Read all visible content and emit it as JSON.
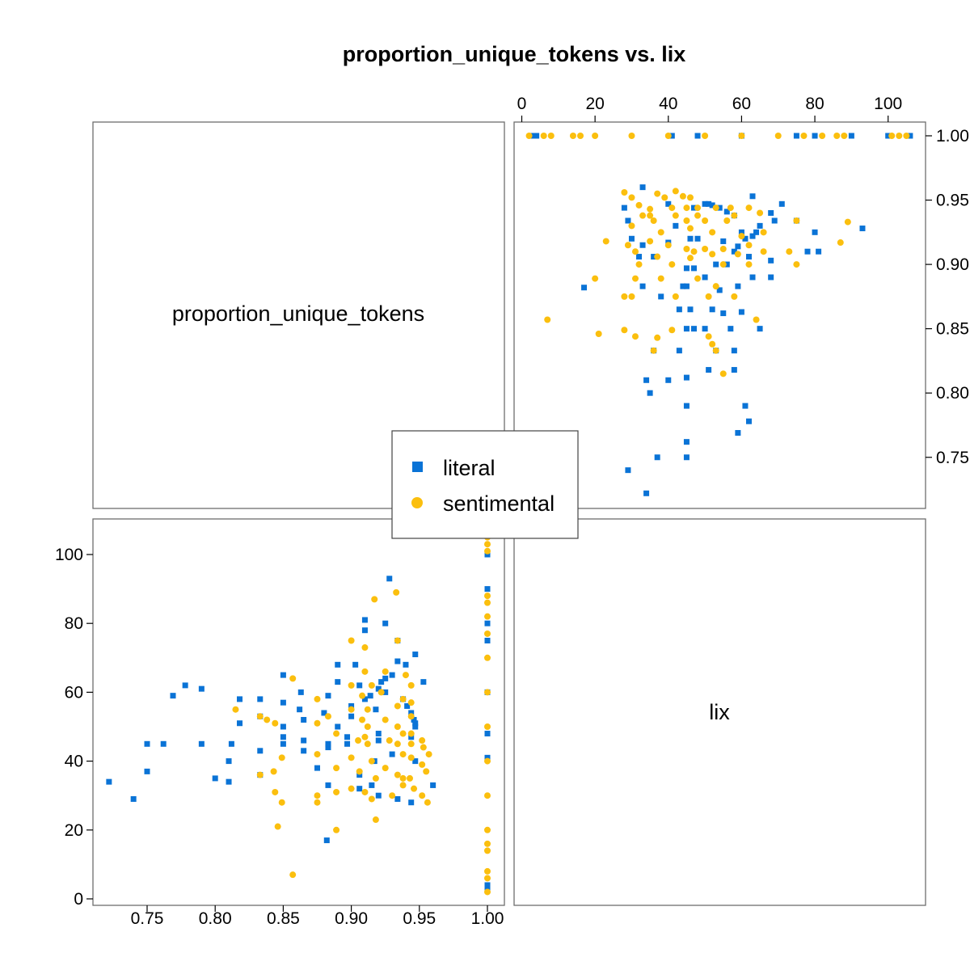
{
  "title": "proportion_unique_tokens vs. lix",
  "variables": [
    "proportion_unique_tokens",
    "lix"
  ],
  "colors": {
    "literal": "#0a73d6",
    "sentimental": "#fbbf0e"
  },
  "chart_data": {
    "type": "scatter",
    "title": "proportion_unique_tokens vs. lix",
    "variables": [
      "proportion_unique_tokens",
      "lix"
    ],
    "x_axis": {
      "variable": "lix",
      "range": [
        0,
        106
      ],
      "ticks": [
        0,
        20,
        40,
        60,
        80,
        100
      ],
      "tick_labels": [
        "0",
        "20",
        "40",
        "60",
        "80",
        "100"
      ]
    },
    "y_axis": {
      "variable": "proportion_unique_tokens",
      "range": [
        0.72,
        1.0
      ],
      "ticks": [
        0.75,
        0.8,
        0.85,
        0.9,
        0.95,
        1.0
      ],
      "tick_labels": [
        "0.75",
        "0.80",
        "0.85",
        "0.90",
        "0.95",
        "1.00"
      ]
    },
    "legend": {
      "placement": "center",
      "entries": [
        "literal",
        "sentimental"
      ]
    },
    "grid": false,
    "series": [
      {
        "name": "literal",
        "marker": "square",
        "color": "#0a73d6",
        "points": [
          [
            3,
            1.0
          ],
          [
            4,
            1.0
          ],
          [
            41,
            1.0
          ],
          [
            48,
            1.0
          ],
          [
            60,
            1.0
          ],
          [
            75,
            1.0
          ],
          [
            80,
            1.0
          ],
          [
            90,
            1.0
          ],
          [
            100,
            1.0
          ],
          [
            106,
            1.0
          ],
          [
            33,
            0.96
          ],
          [
            28,
            0.944
          ],
          [
            40,
            0.947
          ],
          [
            47,
            0.944
          ],
          [
            50,
            0.947
          ],
          [
            51,
            0.947
          ],
          [
            52,
            0.946
          ],
          [
            54,
            0.944
          ],
          [
            56,
            0.941
          ],
          [
            58,
            0.938
          ],
          [
            63,
            0.953
          ],
          [
            68,
            0.94
          ],
          [
            71,
            0.947
          ],
          [
            29,
            0.934
          ],
          [
            42,
            0.93
          ],
          [
            60,
            0.925
          ],
          [
            65,
            0.93
          ],
          [
            69,
            0.934
          ],
          [
            75,
            0.934
          ],
          [
            80,
            0.925
          ],
          [
            93,
            0.928
          ],
          [
            63,
            0.922
          ],
          [
            64,
            0.925
          ],
          [
            30,
            0.92
          ],
          [
            33,
            0.915
          ],
          [
            40,
            0.917
          ],
          [
            46,
            0.92
          ],
          [
            48,
            0.92
          ],
          [
            55,
            0.918
          ],
          [
            59,
            0.914
          ],
          [
            61,
            0.92
          ],
          [
            78,
            0.91
          ],
          [
            81,
            0.91
          ],
          [
            32,
            0.906
          ],
          [
            36,
            0.906
          ],
          [
            45,
            0.897
          ],
          [
            47,
            0.897
          ],
          [
            53,
            0.9
          ],
          [
            56,
            0.9
          ],
          [
            58,
            0.91
          ],
          [
            62,
            0.906
          ],
          [
            68,
            0.903
          ],
          [
            17,
            0.882
          ],
          [
            33,
            0.883
          ],
          [
            38,
            0.875
          ],
          [
            44,
            0.883
          ],
          [
            45,
            0.883
          ],
          [
            50,
            0.89
          ],
          [
            54,
            0.88
          ],
          [
            59,
            0.883
          ],
          [
            63,
            0.89
          ],
          [
            68,
            0.89
          ],
          [
            43,
            0.865
          ],
          [
            46,
            0.865
          ],
          [
            52,
            0.865
          ],
          [
            55,
            0.862
          ],
          [
            60,
            0.863
          ],
          [
            45,
            0.85
          ],
          [
            47,
            0.85
          ],
          [
            50,
            0.85
          ],
          [
            57,
            0.85
          ],
          [
            65,
            0.85
          ],
          [
            36,
            0.833
          ],
          [
            43,
            0.833
          ],
          [
            53,
            0.833
          ],
          [
            58,
            0.833
          ],
          [
            34,
            0.81
          ],
          [
            40,
            0.81
          ],
          [
            45,
            0.812
          ],
          [
            51,
            0.818
          ],
          [
            58,
            0.818
          ],
          [
            35,
            0.8
          ],
          [
            45,
            0.79
          ],
          [
            61,
            0.79
          ],
          [
            62,
            0.778
          ],
          [
            59,
            0.769
          ],
          [
            45,
            0.762
          ],
          [
            37,
            0.75
          ],
          [
            45,
            0.75
          ],
          [
            29,
            0.74
          ],
          [
            34,
            0.722
          ]
        ]
      },
      {
        "name": "sentimental",
        "marker": "circle",
        "color": "#fbbf0e",
        "points": [
          [
            2,
            1.0
          ],
          [
            6,
            1.0
          ],
          [
            8,
            1.0
          ],
          [
            14,
            1.0
          ],
          [
            16,
            1.0
          ],
          [
            20,
            1.0
          ],
          [
            30,
            1.0
          ],
          [
            40,
            1.0
          ],
          [
            50,
            1.0
          ],
          [
            60,
            1.0
          ],
          [
            70,
            1.0
          ],
          [
            77,
            1.0
          ],
          [
            82,
            1.0
          ],
          [
            86,
            1.0
          ],
          [
            88,
            1.0
          ],
          [
            101,
            1.0
          ],
          [
            103,
            1.0
          ],
          [
            105,
            1.0
          ],
          [
            28,
            0.956
          ],
          [
            30,
            0.952
          ],
          [
            37,
            0.955
          ],
          [
            39,
            0.952
          ],
          [
            42,
            0.957
          ],
          [
            44,
            0.953
          ],
          [
            46,
            0.952
          ],
          [
            32,
            0.946
          ],
          [
            35,
            0.943
          ],
          [
            41,
            0.944
          ],
          [
            45,
            0.944
          ],
          [
            48,
            0.944
          ],
          [
            53,
            0.944
          ],
          [
            57,
            0.944
          ],
          [
            62,
            0.944
          ],
          [
            33,
            0.938
          ],
          [
            35,
            0.938
          ],
          [
            42,
            0.938
          ],
          [
            48,
            0.938
          ],
          [
            58,
            0.938
          ],
          [
            65,
            0.94
          ],
          [
            36,
            0.934
          ],
          [
            45,
            0.934
          ],
          [
            50,
            0.934
          ],
          [
            56,
            0.934
          ],
          [
            75,
            0.934
          ],
          [
            89,
            0.933
          ],
          [
            30,
            0.93
          ],
          [
            38,
            0.925
          ],
          [
            46,
            0.928
          ],
          [
            52,
            0.925
          ],
          [
            60,
            0.922
          ],
          [
            66,
            0.925
          ],
          [
            23,
            0.918
          ],
          [
            29,
            0.915
          ],
          [
            35,
            0.918
          ],
          [
            40,
            0.915
          ],
          [
            45,
            0.912
          ],
          [
            50,
            0.912
          ],
          [
            55,
            0.912
          ],
          [
            62,
            0.915
          ],
          [
            87,
            0.917
          ],
          [
            31,
            0.91
          ],
          [
            37,
            0.906
          ],
          [
            47,
            0.91
          ],
          [
            52,
            0.908
          ],
          [
            59,
            0.908
          ],
          [
            66,
            0.91
          ],
          [
            73,
            0.91
          ],
          [
            32,
            0.9
          ],
          [
            41,
            0.9
          ],
          [
            46,
            0.905
          ],
          [
            55,
            0.9
          ],
          [
            75,
            0.9
          ],
          [
            62,
            0.9
          ],
          [
            20,
            0.889
          ],
          [
            31,
            0.889
          ],
          [
            38,
            0.889
          ],
          [
            48,
            0.889
          ],
          [
            53,
            0.883
          ],
          [
            28,
            0.875
          ],
          [
            42,
            0.875
          ],
          [
            51,
            0.875
          ],
          [
            58,
            0.875
          ],
          [
            7,
            0.857
          ],
          [
            30,
            0.875
          ],
          [
            64,
            0.857
          ],
          [
            41,
            0.849
          ],
          [
            28,
            0.849
          ],
          [
            21,
            0.846
          ],
          [
            31,
            0.844
          ],
          [
            37,
            0.843
          ],
          [
            51,
            0.844
          ],
          [
            52,
            0.838
          ],
          [
            36,
            0.833
          ],
          [
            53,
            0.833
          ],
          [
            55,
            0.815
          ]
        ]
      }
    ]
  }
}
